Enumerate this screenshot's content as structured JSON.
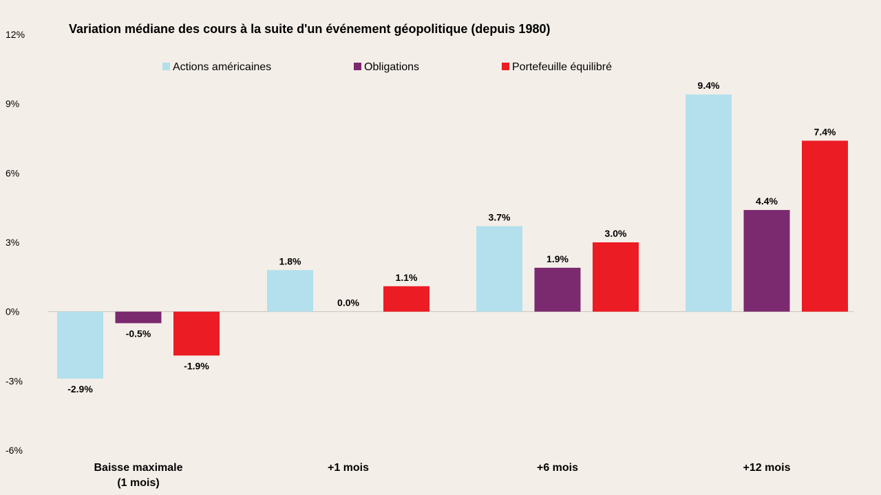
{
  "chart_data": {
    "type": "bar",
    "title": "Variation médiane des cours à la suite d'un événement géopolitique (depuis 1980)",
    "xlabel": "",
    "ylabel": "",
    "ylim": [
      -6,
      12
    ],
    "yticks": [
      12,
      9,
      6,
      3,
      0,
      -3,
      -6
    ],
    "ytick_labels": [
      "12%",
      "9%",
      "6%",
      "3%",
      "0%",
      "-3%",
      "-6%"
    ],
    "grid": false,
    "legend_position": "top",
    "categories": [
      [
        "Baisse maximale",
        "(1 mois)"
      ],
      [
        "+1 mois"
      ],
      [
        "+6 mois"
      ],
      [
        "+12 mois"
      ]
    ],
    "series": [
      {
        "name": "Actions américaines",
        "color": "#b3e0ec",
        "values": [
          -2.9,
          1.8,
          3.7,
          9.4
        ],
        "labels": [
          "-2.9%",
          "1.8%",
          "3.7%",
          "9.4%"
        ]
      },
      {
        "name": "Obligations",
        "color": "#7b2a6f",
        "values": [
          -0.5,
          0.0,
          1.9,
          4.4
        ],
        "labels": [
          "-0.5%",
          "0.0%",
          "1.9%",
          "4.4%"
        ]
      },
      {
        "name": "Portefeuille équilibré",
        "color": "#ec1c24",
        "values": [
          -1.9,
          1.1,
          3.0,
          7.4
        ],
        "labels": [
          "-1.9%",
          "1.1%",
          "3.0%",
          "7.4%"
        ]
      }
    ]
  }
}
